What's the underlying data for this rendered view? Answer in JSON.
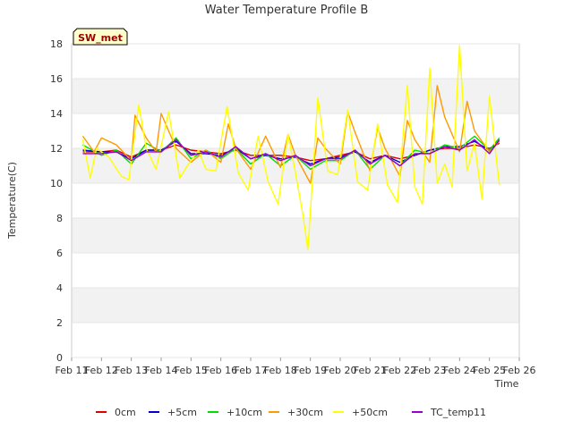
{
  "chart_data": {
    "type": "line",
    "title": "Water Temperature Profile B",
    "xlabel": "Time",
    "ylabel": "Temperature(C)",
    "site_badge": "SW_met",
    "xlim": [
      "Feb 11",
      "Feb 26"
    ],
    "ylim": [
      0,
      18
    ],
    "yticks": [
      0,
      2,
      4,
      6,
      8,
      10,
      12,
      14,
      16,
      18
    ],
    "xticks": [
      "Feb 11",
      "Feb 12",
      "Feb 13",
      "Feb 14",
      "Feb 15",
      "Feb 16",
      "Feb 17",
      "Feb 18",
      "Feb 19",
      "Feb 20",
      "Feb 21",
      "Feb 22",
      "Feb 23",
      "Feb 24",
      "Feb 25",
      "Feb 26"
    ],
    "grid": "horizontal bands",
    "legend_position": "bottom",
    "series": [
      {
        "name": "0cm",
        "color": "#dd0000",
        "x": [
          "Feb 11 09:00",
          "Feb 12 00:00",
          "Feb 12 12:00",
          "Feb 13 00:00",
          "Feb 13 12:00",
          "Feb 14 00:00",
          "Feb 14 12:00",
          "Feb 15 00:00",
          "Feb 15 12:00",
          "Feb 16 00:00",
          "Feb 16 12:00",
          "Feb 17 00:00",
          "Feb 17 12:00",
          "Feb 18 00:00",
          "Feb 18 12:00",
          "Feb 19 00:00",
          "Feb 19 12:00",
          "Feb 20 00:00",
          "Feb 20 12:00",
          "Feb 21 00:00",
          "Feb 21 12:00",
          "Feb 22 00:00",
          "Feb 22 12:00",
          "Feb 23 00:00",
          "Feb 23 12:00",
          "Feb 24 00:00",
          "Feb 24 12:00",
          "Feb 25 00:00",
          "Feb 25 08:00"
        ],
        "y": [
          11.8,
          11.8,
          11.9,
          11.5,
          11.9,
          11.9,
          12.2,
          11.9,
          11.8,
          11.7,
          11.9,
          11.6,
          11.6,
          11.6,
          11.5,
          11.3,
          11.4,
          11.6,
          11.8,
          11.4,
          11.6,
          11.4,
          11.6,
          11.9,
          12.0,
          12.0,
          12.2,
          12.0,
          12.3
        ]
      },
      {
        "name": "+5cm",
        "color": "#0000cc",
        "x": [
          "Feb 11 09:00",
          "Feb 12 00:00",
          "Feb 12 12:00",
          "Feb 13 00:00",
          "Feb 13 12:00",
          "Feb 14 00:00",
          "Feb 14 12:00",
          "Feb 15 00:00",
          "Feb 15 12:00",
          "Feb 16 00:00",
          "Feb 16 12:00",
          "Feb 17 00:00",
          "Feb 17 12:00",
          "Feb 18 00:00",
          "Feb 18 12:00",
          "Feb 19 00:00",
          "Feb 19 12:00",
          "Feb 20 00:00",
          "Feb 20 12:00",
          "Feb 21 00:00",
          "Feb 21 12:00",
          "Feb 22 00:00",
          "Feb 22 12:00",
          "Feb 23 00:00",
          "Feb 23 12:00",
          "Feb 24 00:00",
          "Feb 24 12:00",
          "Feb 25 00:00",
          "Feb 25 08:00"
        ],
        "y": [
          11.9,
          11.8,
          11.8,
          11.4,
          11.9,
          11.9,
          12.4,
          11.7,
          11.7,
          11.6,
          12.0,
          11.4,
          11.6,
          11.4,
          11.5,
          11.1,
          11.4,
          11.5,
          11.8,
          11.2,
          11.6,
          11.2,
          11.6,
          11.9,
          12.1,
          12.1,
          12.4,
          11.9,
          12.4
        ]
      },
      {
        "name": "+10cm",
        "color": "#00dd00",
        "x": [
          "Feb 11 09:00",
          "Feb 12 00:00",
          "Feb 12 12:00",
          "Feb 13 00:00",
          "Feb 13 12:00",
          "Feb 14 00:00",
          "Feb 14 12:00",
          "Feb 15 00:00",
          "Feb 15 12:00",
          "Feb 16 00:00",
          "Feb 16 12:00",
          "Feb 17 00:00",
          "Feb 17 12:00",
          "Feb 18 00:00",
          "Feb 18 12:00",
          "Feb 19 00:00",
          "Feb 19 12:00",
          "Feb 20 00:00",
          "Feb 20 12:00",
          "Feb 21 00:00",
          "Feb 21 12:00",
          "Feb 22 00:00",
          "Feb 22 12:00",
          "Feb 23 00:00",
          "Feb 23 12:00",
          "Feb 24 00:00",
          "Feb 24 12:00",
          "Feb 25 00:00",
          "Feb 25 08:00"
        ],
        "y": [
          12.2,
          11.6,
          11.9,
          11.1,
          12.3,
          11.8,
          12.6,
          11.4,
          11.9,
          11.4,
          12.0,
          11.1,
          11.7,
          11.0,
          11.6,
          10.8,
          11.3,
          11.3,
          11.9,
          10.8,
          11.6,
          11.0,
          11.9,
          11.7,
          12.2,
          12.0,
          12.7,
          11.9,
          12.6
        ]
      },
      {
        "name": "+30cm",
        "color": "#ff9900",
        "x": [
          "Feb 11 09:00",
          "Feb 11 18:00",
          "Feb 12 00:00",
          "Feb 12 12:00",
          "Feb 13 00:00",
          "Feb 13 03:00",
          "Feb 13 12:00",
          "Feb 13 20:00",
          "Feb 14 00:00",
          "Feb 14 12:00",
          "Feb 15 00:00",
          "Feb 15 12:00",
          "Feb 16 00:00",
          "Feb 16 06:00",
          "Feb 16 12:00",
          "Feb 17 00:00",
          "Feb 17 12:00",
          "Feb 18 00:00",
          "Feb 18 06:00",
          "Feb 18 12:00",
          "Feb 19 00:00",
          "Feb 19 06:00",
          "Feb 19 12:00",
          "Feb 20 00:00",
          "Feb 20 06:00",
          "Feb 20 12:00",
          "Feb 21 00:00",
          "Feb 21 06:00",
          "Feb 21 12:00",
          "Feb 22 00:00",
          "Feb 22 06:00",
          "Feb 22 12:00",
          "Feb 23 00:00",
          "Feb 23 06:00",
          "Feb 23 12:00",
          "Feb 24 00:00",
          "Feb 24 06:00",
          "Feb 24 12:00",
          "Feb 25 00:00",
          "Feb 25 08:00"
        ],
        "y": [
          12.7,
          11.8,
          12.6,
          12.2,
          11.3,
          13.9,
          12.6,
          11.8,
          14.0,
          12.0,
          11.2,
          11.9,
          11.2,
          13.4,
          12.0,
          10.8,
          12.7,
          10.9,
          12.8,
          11.6,
          10.0,
          12.6,
          12.0,
          11.1,
          14.1,
          12.9,
          10.7,
          13.2,
          12.0,
          10.4,
          13.6,
          12.5,
          11.2,
          15.6,
          13.8,
          11.8,
          14.7,
          13.0,
          11.8,
          12.4
        ]
      },
      {
        "name": "+50cm",
        "color": "#ffff00",
        "x": [
          "Feb 11 09:00",
          "Feb 11 15:00",
          "Feb 11 20:00",
          "Feb 12 06:00",
          "Feb 12 16:00",
          "Feb 12 22:00",
          "Feb 13 06:00",
          "Feb 13 12:00",
          "Feb 13 20:00",
          "Feb 14 06:00",
          "Feb 14 15:00",
          "Feb 14 21:00",
          "Feb 15 06:00",
          "Feb 15 12:00",
          "Feb 15 20:00",
          "Feb 16 05:00",
          "Feb 16 14:00",
          "Feb 16 22:00",
          "Feb 17 06:00",
          "Feb 17 14:00",
          "Feb 17 22:00",
          "Feb 18 06:00",
          "Feb 18 12:00",
          "Feb 18 18:00",
          "Feb 18 22:00",
          "Feb 19 06:00",
          "Feb 19 14:00",
          "Feb 19 22:00",
          "Feb 20 06:00",
          "Feb 20 14:00",
          "Feb 20 22:00",
          "Feb 21 06:00",
          "Feb 21 14:00",
          "Feb 21 22:00",
          "Feb 22 06:00",
          "Feb 22 12:00",
          "Feb 22 18:00",
          "Feb 23 00:00",
          "Feb 23 06:00",
          "Feb 23 12:00",
          "Feb 23 18:00",
          "Feb 24 00:00",
          "Feb 24 06:00",
          "Feb 24 12:00",
          "Feb 24 18:00",
          "Feb 25 00:00",
          "Feb 25 06:00",
          "Feb 25 08:00"
        ],
        "y": [
          12.5,
          10.3,
          12.0,
          11.5,
          10.4,
          10.2,
          14.5,
          12.0,
          10.8,
          14.1,
          10.3,
          11.0,
          11.9,
          10.8,
          10.7,
          14.4,
          10.6,
          9.6,
          12.7,
          10.1,
          8.8,
          12.8,
          10.6,
          8.2,
          6.2,
          14.9,
          10.7,
          10.5,
          14.2,
          10.1,
          9.6,
          13.4,
          9.9,
          8.9,
          15.6,
          9.8,
          8.8,
          16.6,
          10.0,
          11.1,
          9.8,
          17.9,
          10.7,
          12.3,
          9.1,
          15.0,
          11.1,
          9.9
        ]
      },
      {
        "name": "TC_temp11",
        "color": "#9900cc",
        "x": [
          "Feb 11 09:00",
          "Feb 12 00:00",
          "Feb 12 12:00",
          "Feb 13 00:00",
          "Feb 13 12:00",
          "Feb 14 00:00",
          "Feb 14 12:00",
          "Feb 15 00:00",
          "Feb 15 12:00",
          "Feb 16 00:00",
          "Feb 16 12:00",
          "Feb 17 00:00",
          "Feb 17 12:00",
          "Feb 18 00:00",
          "Feb 18 12:00",
          "Feb 19 00:00",
          "Feb 19 12:00",
          "Feb 20 00:00",
          "Feb 20 12:00",
          "Feb 21 00:00",
          "Feb 21 12:00",
          "Feb 22 00:00",
          "Feb 22 12:00",
          "Feb 23 00:00",
          "Feb 23 12:00",
          "Feb 24 00:00",
          "Feb 24 12:00",
          "Feb 25 00:00",
          "Feb 25 08:00"
        ],
        "y": [
          11.7,
          11.7,
          11.8,
          11.3,
          11.8,
          11.8,
          12.5,
          11.6,
          11.8,
          11.5,
          12.1,
          11.4,
          11.7,
          11.3,
          11.6,
          11.0,
          11.4,
          11.4,
          11.9,
          11.1,
          11.6,
          11.0,
          11.7,
          11.7,
          12.1,
          11.9,
          12.5,
          11.7,
          12.5
        ]
      }
    ]
  }
}
